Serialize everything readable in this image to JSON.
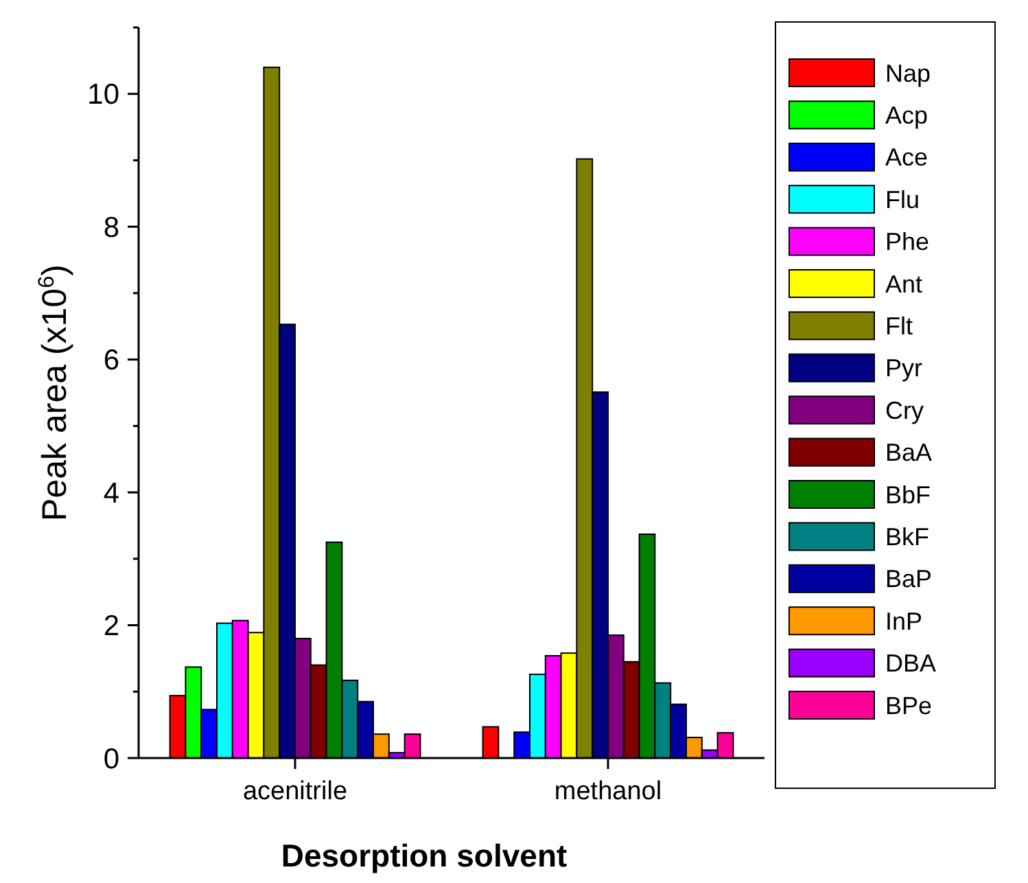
{
  "chart_data": {
    "type": "bar",
    "xlabel": "Desorption solvent",
    "ylabel": "Peak area (x10$^{6}$)",
    "categories": [
      "acenitrile",
      "methanol"
    ],
    "series": [
      {
        "name": "Nap",
        "color": "#ff0000",
        "values": [
          0.94,
          0.47
        ]
      },
      {
        "name": "Acp",
        "color": "#00ff00",
        "values": [
          1.37,
          0
        ]
      },
      {
        "name": "Ace",
        "color": "#0000ff",
        "values": [
          0.73,
          0.39
        ]
      },
      {
        "name": "Flu",
        "color": "#00ffff",
        "values": [
          2.03,
          1.26
        ]
      },
      {
        "name": "Phe",
        "color": "#ff00ff",
        "values": [
          2.07,
          1.54
        ]
      },
      {
        "name": "Ant",
        "color": "#ffff00",
        "values": [
          1.89,
          1.58
        ]
      },
      {
        "name": "Flt",
        "color": "#808000",
        "values": [
          10.4,
          9.02
        ]
      },
      {
        "name": "Pyr",
        "color": "#000080",
        "values": [
          6.53,
          5.51
        ]
      },
      {
        "name": "Cry",
        "color": "#800080",
        "values": [
          1.8,
          1.85
        ]
      },
      {
        "name": "BaA",
        "color": "#800000",
        "values": [
          1.4,
          1.45
        ]
      },
      {
        "name": "BbF",
        "color": "#008000",
        "values": [
          3.25,
          3.37
        ]
      },
      {
        "name": "BkF",
        "color": "#008080",
        "values": [
          1.17,
          1.13
        ]
      },
      {
        "name": "BaP",
        "color": "#0000a0",
        "values": [
          0.85,
          0.81
        ]
      },
      {
        "name": "InP",
        "color": "#ff9900",
        "values": [
          0.36,
          0.31
        ]
      },
      {
        "name": "DBA",
        "color": "#9900ff",
        "values": [
          0.08,
          0.12
        ]
      },
      {
        "name": "BPe",
        "color": "#ff0099",
        "values": [
          0.36,
          0.38
        ]
      }
    ],
    "ylim": [
      0,
      11
    ],
    "yticks": [
      0,
      {
        "value": 1,
        "label": null
      },
      2,
      {
        "value": 3,
        "label": null
      },
      4,
      {
        "value": 5,
        "label": null
      },
      6,
      {
        "value": 7,
        "label": null
      },
      8,
      {
        "value": 9,
        "label": null
      },
      10,
      {
        "value": 11,
        "label": null
      }
    ],
    "grid": false,
    "legend": "right"
  }
}
